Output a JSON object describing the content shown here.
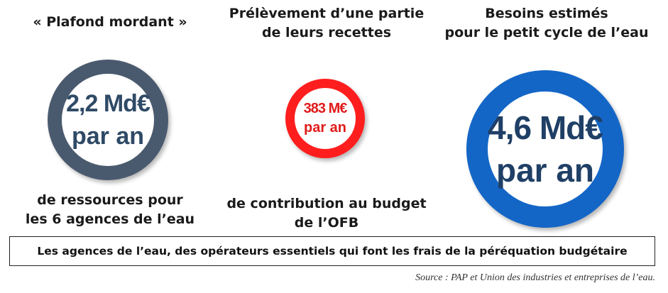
{
  "items": [
    {
      "heading": [
        "« Plafond mordant »"
      ],
      "value": "2,2 Md€",
      "unit": "par an",
      "description": [
        "de ressources pour",
        "les 6 agences de l’eau"
      ],
      "color": "#4a5a6e"
    },
    {
      "heading": [
        "Prélèvement d’une partie",
        "de leurs recettes"
      ],
      "value": "383 M€",
      "unit": "par an",
      "description": [
        "de contribution au budget",
        "de l’OFB"
      ],
      "color": "#ff1e1e"
    },
    {
      "heading": [
        "Besoins estimés",
        "pour le petit cycle de l’eau"
      ],
      "value": "4,6 Md€",
      "unit": "par an",
      "description": [],
      "color": "#1466c6"
    }
  ],
  "banner": "Les agences de l’eau, des opérateurs essentiels qui font les frais de la péréquation budgétaire",
  "source": "Source : PAP et Union des industries et entreprises de l’eau."
}
